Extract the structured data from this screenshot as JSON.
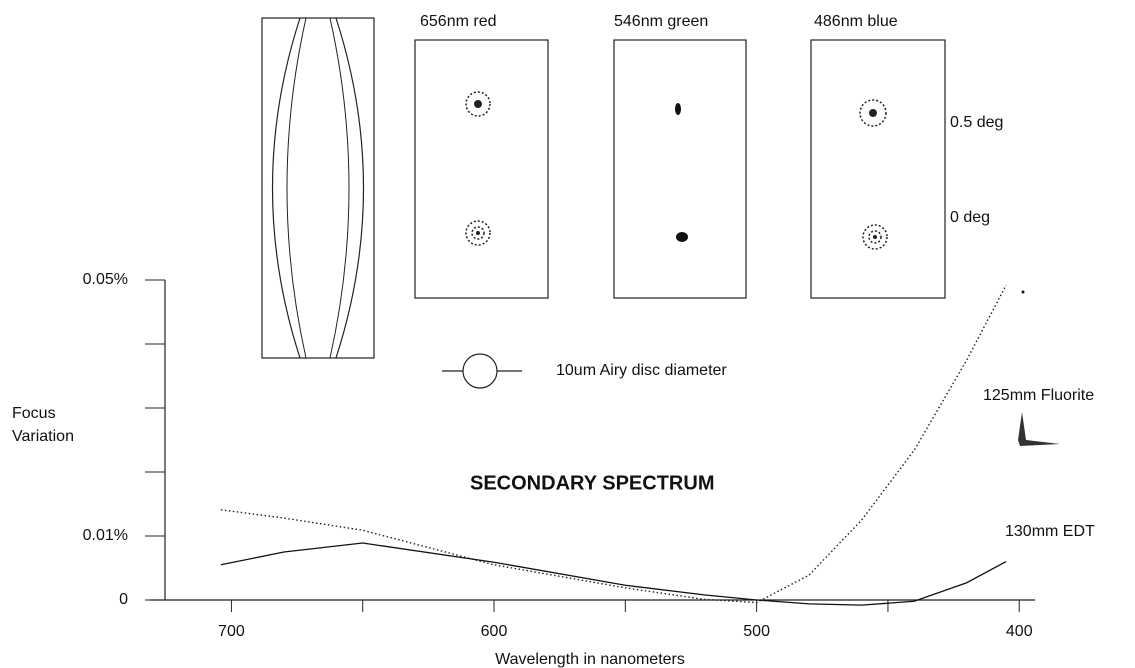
{
  "chart_data": {
    "type": "line",
    "title": "SECONDARY SPECTRUM",
    "xlabel": "Wavelength in nanometers",
    "ylabel": [
      "Focus",
      "Variation"
    ],
    "annotations": {
      "red": "656nm red",
      "green": "546nm green",
      "blue": "486nm blue",
      "off_axis": "0.5 deg",
      "on_axis": "0 deg",
      "airy": "10um Airy disc diameter"
    },
    "x": [
      704,
      680,
      650,
      600,
      550,
      520,
      500,
      480,
      460,
      440,
      420,
      405
    ],
    "series": [
      {
        "name": "125mm Fluorite",
        "color": "#222222",
        "dash": "dotted",
        "values": [
          0.0141,
          0.0128,
          0.0109,
          0.0055,
          0.0019,
          0.0001,
          -0.0004,
          0.0039,
          0.0125,
          0.0234,
          0.0375,
          0.0492
        ]
      },
      {
        "name": "130mm EDT",
        "color": "#111111",
        "dash": "solid",
        "values": [
          0.0055,
          0.0075,
          0.0089,
          0.0059,
          0.0023,
          0.0008,
          0.0,
          -0.0006,
          -0.0008,
          -0.0002,
          0.0027,
          0.006
        ]
      }
    ],
    "xlim": [
      731,
      394
    ],
    "xticks": [
      700,
      600,
      500,
      400
    ],
    "xminor_ticks": [
      650,
      550,
      450
    ],
    "ylim": [
      0,
      0.05
    ],
    "yticks": [
      0,
      {
        "value": 0.01,
        "label": "0.01%"
      },
      {
        "value": 0.05,
        "label": "0.05%"
      }
    ],
    "yminor_ticks": [
      0.02,
      0.03,
      0.04
    ]
  }
}
